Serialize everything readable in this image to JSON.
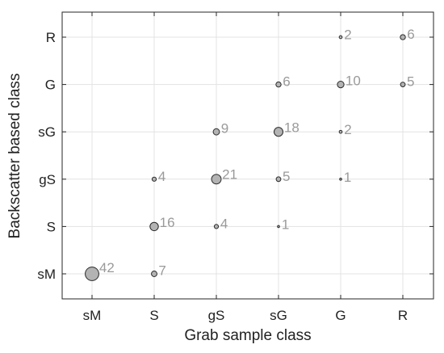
{
  "chart_data": {
    "type": "scatter",
    "title": "",
    "xlabel": "Grab sample class",
    "ylabel": "Backscatter based class",
    "x_categories": [
      "sM",
      "S",
      "gS",
      "sG",
      "G",
      "R"
    ],
    "y_categories": [
      "sM",
      "S",
      "gS",
      "sG",
      "G",
      "R"
    ],
    "grid": true,
    "points": [
      {
        "x": "sM",
        "y": "sM",
        "value": 42
      },
      {
        "x": "S",
        "y": "sM",
        "value": 7
      },
      {
        "x": "S",
        "y": "S",
        "value": 16
      },
      {
        "x": "S",
        "y": "gS",
        "value": 4
      },
      {
        "x": "gS",
        "y": "S",
        "value": 4
      },
      {
        "x": "gS",
        "y": "gS",
        "value": 21
      },
      {
        "x": "gS",
        "y": "sG",
        "value": 9
      },
      {
        "x": "sG",
        "y": "S",
        "value": 1
      },
      {
        "x": "sG",
        "y": "gS",
        "value": 5
      },
      {
        "x": "sG",
        "y": "sG",
        "value": 18
      },
      {
        "x": "sG",
        "y": "G",
        "value": 6
      },
      {
        "x": "G",
        "y": "gS",
        "value": 1
      },
      {
        "x": "G",
        "y": "sG",
        "value": 2
      },
      {
        "x": "G",
        "y": "G",
        "value": 10
      },
      {
        "x": "G",
        "y": "R",
        "value": 2
      },
      {
        "x": "R",
        "y": "G",
        "value": 5
      },
      {
        "x": "R",
        "y": "R",
        "value": 6
      }
    ],
    "colors": {
      "marker_fill": "#b3b3b3",
      "marker_edge": "#2b2b2b",
      "data_label": "#9a9a9a",
      "grid": "#e3e3e3",
      "axis": "#262626"
    }
  }
}
